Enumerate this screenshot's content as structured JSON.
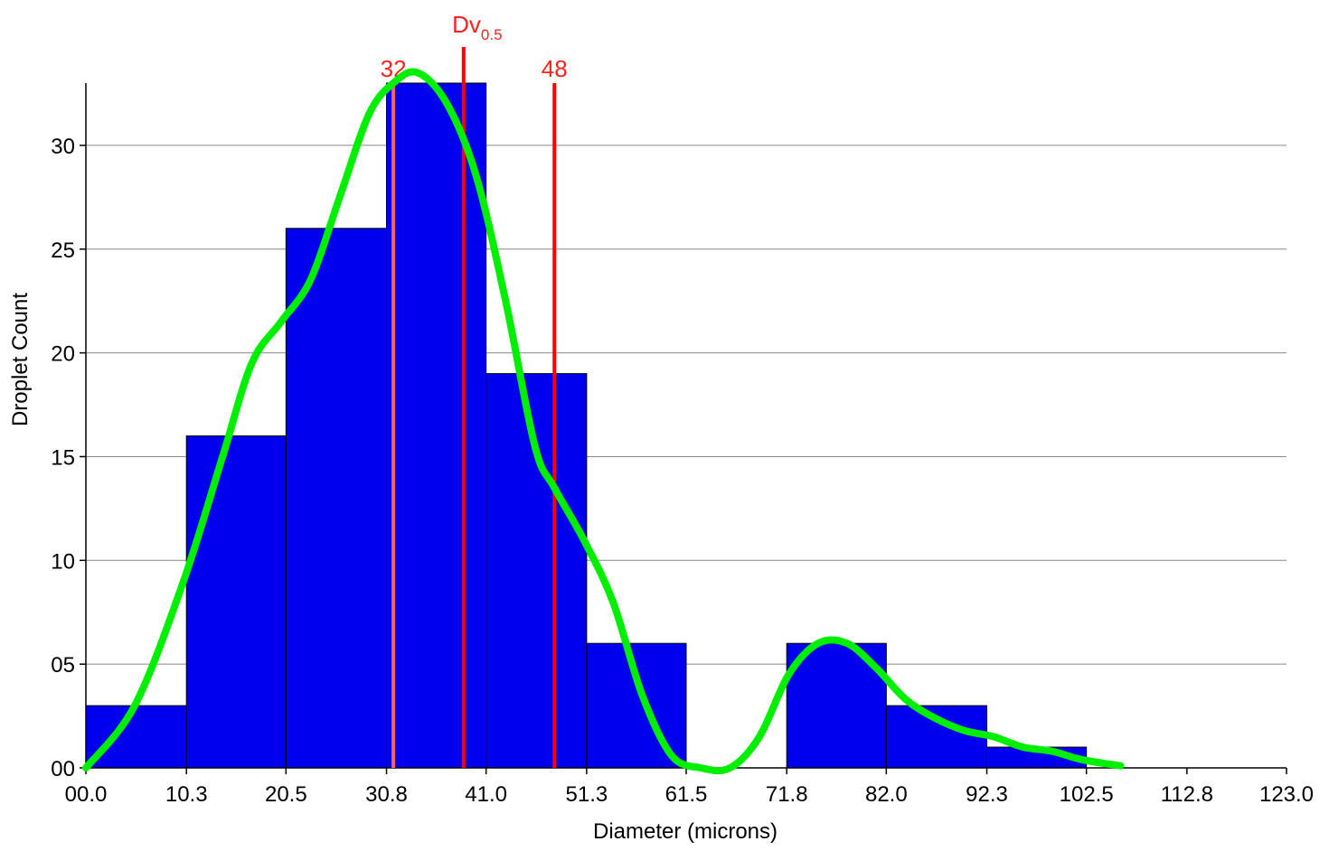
{
  "chart_data": {
    "type": "bar",
    "xlabel": "Diameter (microns)",
    "ylabel": "Droplet Count",
    "x_ticks": [
      "00.0",
      "10.3",
      "20.5",
      "30.8",
      "41.0",
      "51.3",
      "61.5",
      "71.8",
      "82.0",
      "92.3",
      "102.5",
      "112.8",
      "123.0"
    ],
    "y_ticks": [
      "00",
      "05",
      "10",
      "15",
      "20",
      "25",
      "30"
    ],
    "xlim": [
      0,
      123.0
    ],
    "ylim": [
      0,
      33
    ],
    "grid": "horizontal",
    "bins": [
      {
        "from": 0.0,
        "to": 10.3,
        "count": 3
      },
      {
        "from": 10.3,
        "to": 20.5,
        "count": 16
      },
      {
        "from": 20.5,
        "to": 30.8,
        "count": 26
      },
      {
        "from": 30.8,
        "to": 41.0,
        "count": 33
      },
      {
        "from": 41.0,
        "to": 51.3,
        "count": 19
      },
      {
        "from": 51.3,
        "to": 61.5,
        "count": 6
      },
      {
        "from": 61.5,
        "to": 71.8,
        "count": 0
      },
      {
        "from": 71.8,
        "to": 82.0,
        "count": 6
      },
      {
        "from": 82.0,
        "to": 92.3,
        "count": 3
      },
      {
        "from": 92.3,
        "to": 102.5,
        "count": 1
      },
      {
        "from": 102.5,
        "to": 112.8,
        "count": 0
      },
      {
        "from": 112.8,
        "to": 123.0,
        "count": 0
      }
    ],
    "density_curve": {
      "x": [
        0,
        5,
        10,
        14,
        17,
        20,
        23,
        26,
        29,
        31.5,
        34,
        37,
        40,
        43,
        46,
        48,
        51,
        54,
        57,
        60,
        63,
        66,
        69,
        72,
        75,
        78,
        81,
        84,
        87,
        90,
        93,
        96,
        99,
        102,
        106
      ],
      "y": [
        0,
        3,
        9,
        15,
        19.5,
        21.5,
        23.5,
        27.5,
        31.5,
        33,
        33.5,
        32,
        28.5,
        22.5,
        15.5,
        13.5,
        11,
        8,
        3.5,
        0.6,
        0,
        0,
        1.5,
        4.5,
        6,
        6,
        4.8,
        3.3,
        2.4,
        1.8,
        1.5,
        1,
        0.8,
        0.4,
        0.1
      ],
      "color": "#00ee00"
    },
    "markers": [
      {
        "label": "32",
        "x": 31.5,
        "color": "#ff6060"
      },
      {
        "label": "Dv",
        "sub": "0.5",
        "x": 38.7,
        "color": "#ff0000"
      },
      {
        "label": "48",
        "x": 48.0,
        "color": "#ff0000"
      }
    ],
    "bar_color": "#0000ee"
  }
}
